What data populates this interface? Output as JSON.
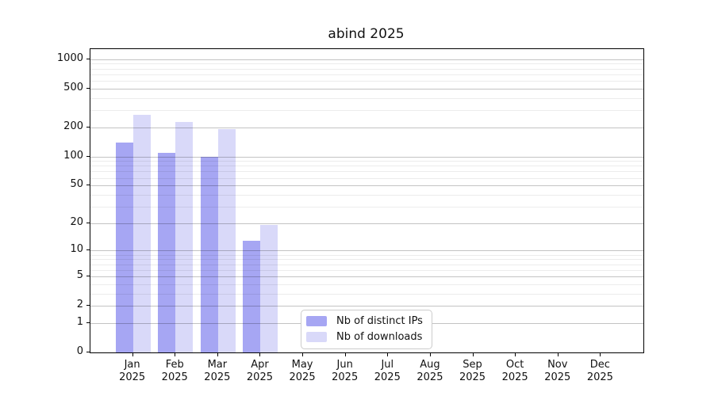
{
  "title": "abind 2025",
  "chart_data": {
    "type": "bar",
    "title": "abind 2025",
    "categories": [
      "Jan",
      "Feb",
      "Mar",
      "Apr",
      "May",
      "Jun",
      "Jul",
      "Aug",
      "Sep",
      "Oct",
      "Nov",
      "Dec"
    ],
    "category_year": "2025",
    "series": [
      {
        "name": "Nb of distinct IPs",
        "color": "#a6a6f3",
        "values": [
          140,
          110,
          100,
          13,
          null,
          null,
          null,
          null,
          null,
          null,
          null,
          null
        ]
      },
      {
        "name": "Nb of downloads",
        "color": "#d9d9f9",
        "values": [
          270,
          225,
          190,
          19,
          null,
          null,
          null,
          null,
          null,
          null,
          null,
          null
        ]
      }
    ],
    "xlabel": "",
    "ylabel": "",
    "yscale": "log1p",
    "yticks": [
      0,
      1,
      2,
      5,
      10,
      20,
      50,
      100,
      200,
      500,
      1000
    ],
    "ylim": [
      0,
      1265
    ],
    "grid": true,
    "legend_position": "inside-bottom-center"
  }
}
